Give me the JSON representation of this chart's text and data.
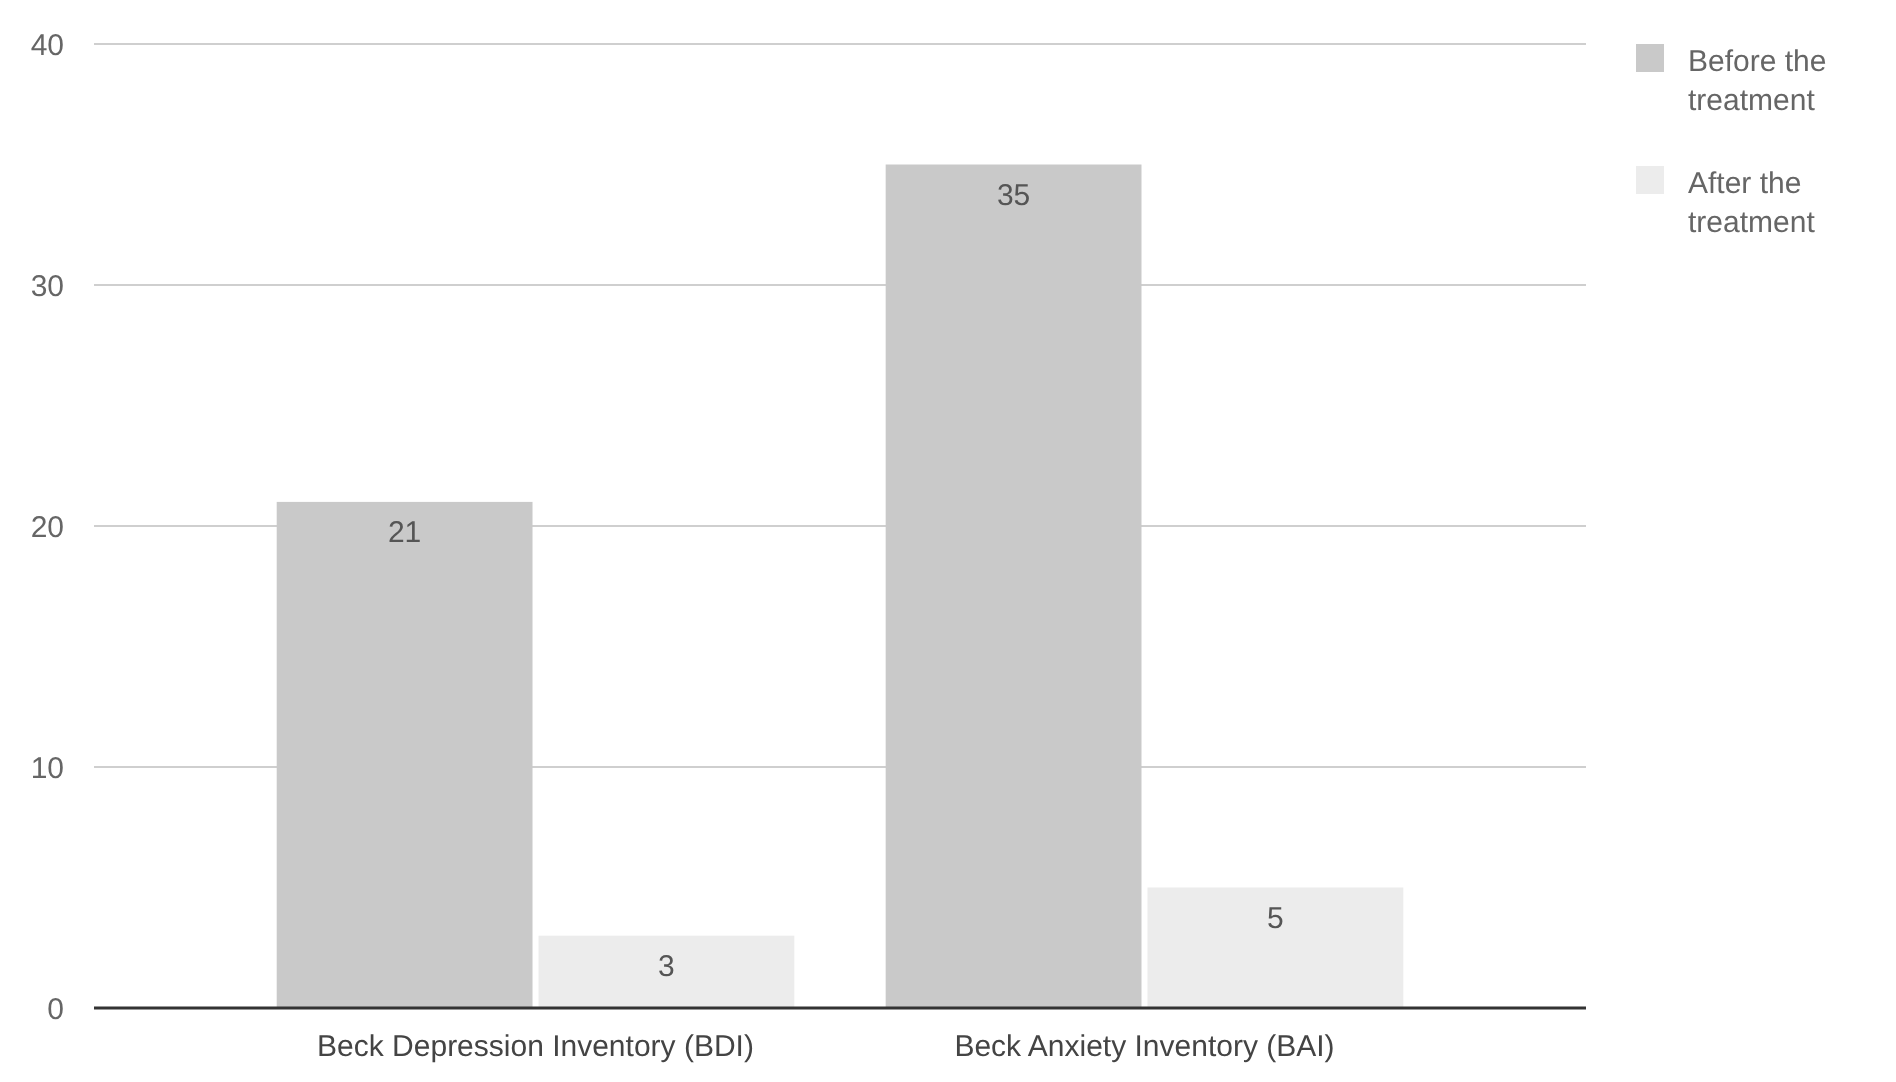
{
  "chart_data": {
    "type": "bar",
    "categories": [
      "Beck Depression Inventory (BDI)",
      "Beck Anxiety Inventory (BAI)"
    ],
    "series": [
      {
        "name": "Before the treatment",
        "color": "#c9c9c9",
        "values": [
          21,
          35
        ]
      },
      {
        "name": "After the treatment",
        "color": "#ececec",
        "values": [
          3,
          5
        ]
      }
    ],
    "ylim": [
      0,
      40
    ],
    "yticks": [
      0,
      10,
      20,
      30,
      40
    ],
    "grid": "y",
    "legend": "right",
    "data_labels": true
  }
}
